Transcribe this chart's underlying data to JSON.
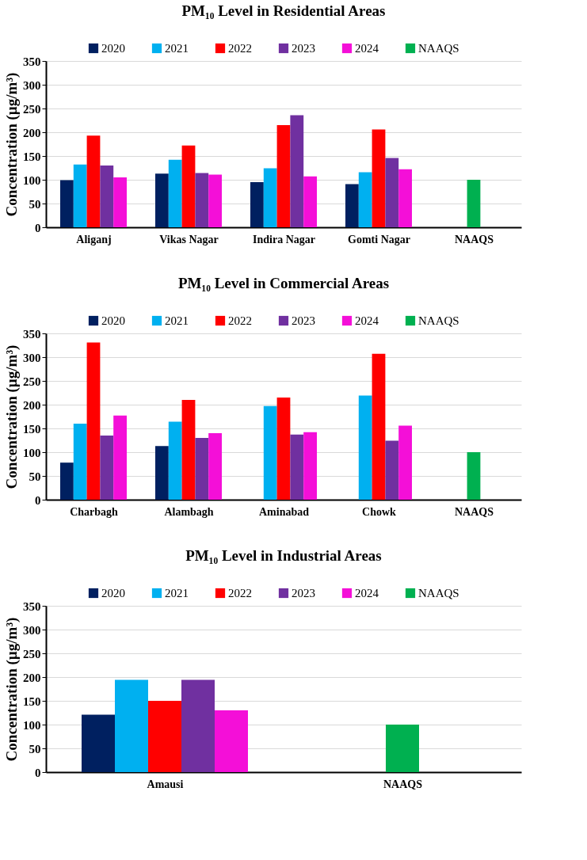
{
  "chart_data": [
    {
      "type": "bar",
      "title": "PM₁₀ Level in Residential Areas",
      "ylabel": "Concentration (µg/m³)",
      "categories": [
        "Aliganj",
        "Vikas Nagar",
        "Indira Nagar",
        "Gomti Nagar",
        "NAAQS"
      ],
      "series": [
        {
          "name": "2020",
          "color": "#002060",
          "values": [
            99,
            113,
            95,
            91,
            null
          ]
        },
        {
          "name": "2021",
          "color": "#00b0f0",
          "values": [
            132,
            142,
            124,
            116,
            null
          ]
        },
        {
          "name": "2022",
          "color": "#ff0000",
          "values": [
            193,
            172,
            215,
            206,
            null
          ]
        },
        {
          "name": "2023",
          "color": "#7030a0",
          "values": [
            130,
            114,
            236,
            146,
            null
          ]
        },
        {
          "name": "2024",
          "color": "#f40fd8",
          "values": [
            105,
            111,
            107,
            122,
            null
          ]
        },
        {
          "name": "NAAQS",
          "color": "#00b050",
          "values": [
            null,
            null,
            null,
            null,
            100
          ]
        }
      ],
      "ylim": [
        0,
        350
      ],
      "yticks": [
        0,
        50,
        100,
        150,
        200,
        250,
        300,
        350
      ],
      "grid": "y",
      "legend": "top"
    },
    {
      "type": "bar",
      "title": "PM₁₀ Level in Commercial Areas",
      "ylabel": "Concentration (µg/m³)",
      "categories": [
        "Charbagh",
        "Alambagh",
        "Aminabad",
        "Chowk",
        "NAAQS"
      ],
      "series": [
        {
          "name": "2020",
          "color": "#002060",
          "values": [
            78,
            113,
            null,
            null,
            null
          ]
        },
        {
          "name": "2021",
          "color": "#00b0f0",
          "values": [
            160,
            164,
            197,
            219,
            null
          ]
        },
        {
          "name": "2022",
          "color": "#ff0000",
          "values": [
            331,
            210,
            215,
            307,
            null
          ]
        },
        {
          "name": "2023",
          "color": "#7030a0",
          "values": [
            135,
            130,
            137,
            124,
            null
          ]
        },
        {
          "name": "2024",
          "color": "#f40fd8",
          "values": [
            177,
            140,
            142,
            156,
            null
          ]
        },
        {
          "name": "NAAQS",
          "color": "#00b050",
          "values": [
            null,
            null,
            null,
            null,
            100
          ]
        }
      ],
      "ylim": [
        0,
        350
      ],
      "yticks": [
        0,
        50,
        100,
        150,
        200,
        250,
        300,
        350
      ],
      "grid": "y",
      "legend": "top"
    },
    {
      "type": "bar",
      "title": "PM₁₀ Level in Industrial Areas",
      "ylabel": "Concentration (µg/m³)",
      "categories": [
        "Amausi",
        "NAAQS"
      ],
      "series": [
        {
          "name": "2020",
          "color": "#002060",
          "values": [
            121,
            null
          ]
        },
        {
          "name": "2021",
          "color": "#00b0f0",
          "values": [
            194,
            null
          ]
        },
        {
          "name": "2022",
          "color": "#ff0000",
          "values": [
            150,
            null
          ]
        },
        {
          "name": "2023",
          "color": "#7030a0",
          "values": [
            194,
            null
          ]
        },
        {
          "name": "2024",
          "color": "#f40fd8",
          "values": [
            130,
            null
          ]
        },
        {
          "name": "NAAQS",
          "color": "#00b050",
          "values": [
            null,
            100
          ]
        }
      ],
      "ylim": [
        0,
        350
      ],
      "yticks": [
        0,
        50,
        100,
        150,
        200,
        250,
        300,
        350
      ],
      "grid": "y",
      "legend": "top"
    }
  ]
}
